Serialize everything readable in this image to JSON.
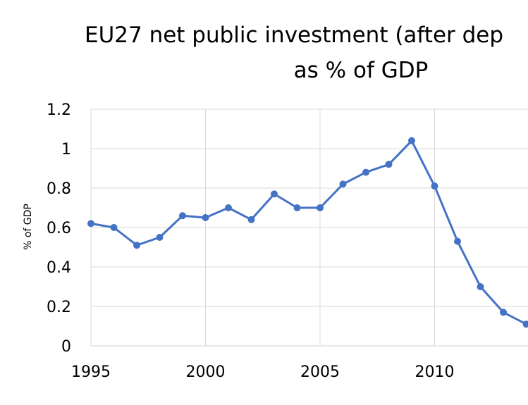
{
  "chart_data": {
    "type": "line",
    "title": "EU27 net public investment (after dep",
    "subtitle": "as % of GDP",
    "xlabel": "",
    "ylabel": "% of GDP",
    "ylim": [
      0,
      1.2
    ],
    "yticks": [
      "0",
      "0.2",
      "0.4",
      "0.6",
      "0.8",
      "1",
      "1.2"
    ],
    "xticks": [
      "1995",
      "2000",
      "2005",
      "2010"
    ],
    "grid": true,
    "series_color": "#4472c4",
    "series": [
      {
        "x": [
          1995,
          1996,
          1997,
          1998,
          1999,
          2000,
          2001,
          2002,
          2003,
          2004,
          2005,
          2006,
          2007,
          2008,
          2009,
          2010,
          2011,
          2012,
          2013,
          2014
        ],
        "values": [
          0.62,
          0.6,
          0.51,
          0.55,
          0.66,
          0.65,
          0.7,
          0.64,
          0.77,
          0.7,
          0.7,
          0.82,
          0.88,
          0.92,
          1.04,
          0.81,
          0.53,
          0.3,
          0.17,
          0.11
        ]
      }
    ]
  }
}
